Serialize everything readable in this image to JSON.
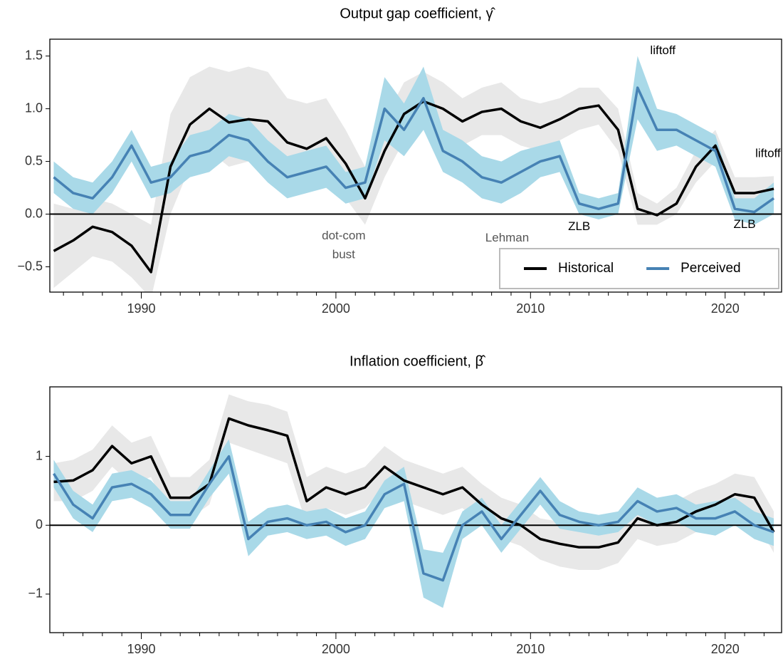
{
  "chart_data": [
    {
      "type": "line",
      "title": "Output gap coefficient, γ̂",
      "x": [
        1985.5,
        1986.5,
        1987.5,
        1988.5,
        1989.5,
        1990.5,
        1991.5,
        1992.5,
        1993.5,
        1994.5,
        1995.5,
        1996.5,
        1997.5,
        1998.5,
        1999.5,
        2000.5,
        2001.5,
        2002.5,
        2003.5,
        2004.5,
        2005.5,
        2006.5,
        2007.5,
        2008.5,
        2009.5,
        2010.5,
        2011.5,
        2012.5,
        2013.5,
        2014.5,
        2015.5,
        2016.5,
        2017.5,
        2018.5,
        2019.5,
        2020.5,
        2021.5,
        2022.5
      ],
      "xlim": [
        1985.3,
        2022.9
      ],
      "xticks": [
        1990,
        2000,
        2010,
        2020
      ],
      "xminorticks": [
        1986,
        1987,
        1988,
        1989,
        1991,
        1992,
        1993,
        1994,
        1995,
        1996,
        1997,
        1998,
        1999,
        2001,
        2002,
        2003,
        2004,
        2005,
        2006,
        2007,
        2008,
        2009,
        2011,
        2012,
        2013,
        2014,
        2015,
        2016,
        2017,
        2018,
        2019,
        2021,
        2022
      ],
      "ylim": [
        -0.74,
        1.66
      ],
      "yticks": [
        {
          "value": -0.5,
          "label": "−0.5"
        },
        {
          "value": 0,
          "label": "0.0"
        },
        {
          "value": 0.5,
          "label": "0.5"
        },
        {
          "value": 1,
          "label": "1.0"
        },
        {
          "value": 1.5,
          "label": "1.5"
        }
      ],
      "hline": 0,
      "legend": "lower right",
      "series": [
        {
          "name": "Historical",
          "color": "#000000",
          "band_color": "#e8e8e8",
          "values": [
            -0.35,
            -0.25,
            -0.12,
            -0.17,
            -0.3,
            -0.55,
            0.45,
            0.85,
            1.0,
            0.87,
            0.9,
            0.88,
            0.68,
            0.62,
            0.72,
            0.48,
            0.15,
            0.6,
            0.95,
            1.07,
            1.0,
            0.88,
            0.97,
            1.0,
            0.88,
            0.82,
            0.9,
            1.0,
            1.03,
            0.8,
            0.05,
            -0.01,
            0.1,
            0.45,
            0.65,
            0.2,
            0.2,
            0.24
          ],
          "band_lower": [
            -0.7,
            -0.55,
            -0.4,
            -0.45,
            -0.6,
            -0.8,
            0.0,
            0.45,
            0.6,
            0.45,
            0.5,
            0.45,
            0.3,
            0.25,
            0.4,
            0.15,
            -0.1,
            0.35,
            0.7,
            0.8,
            0.75,
            0.65,
            0.75,
            0.75,
            0.65,
            0.6,
            0.7,
            0.8,
            0.85,
            0.6,
            -0.1,
            -0.1,
            0.0,
            0.3,
            0.5,
            0.05,
            0.1,
            0.12
          ],
          "band_upper": [
            0.1,
            0.05,
            0.15,
            0.1,
            0.0,
            -0.1,
            0.95,
            1.3,
            1.4,
            1.35,
            1.4,
            1.35,
            1.1,
            1.05,
            1.1,
            0.8,
            0.45,
            0.9,
            1.25,
            1.35,
            1.25,
            1.1,
            1.2,
            1.25,
            1.1,
            1.05,
            1.1,
            1.2,
            1.2,
            1.0,
            0.2,
            0.1,
            0.25,
            0.6,
            0.8,
            0.35,
            0.35,
            0.36
          ]
        },
        {
          "name": "Perceived",
          "color": "#4682b4",
          "band_color": "#a9d9e8",
          "values": [
            0.35,
            0.2,
            0.15,
            0.35,
            0.65,
            0.3,
            0.35,
            0.55,
            0.6,
            0.75,
            0.7,
            0.5,
            0.35,
            0.4,
            0.45,
            0.25,
            0.3,
            1.0,
            0.8,
            1.1,
            0.6,
            0.5,
            0.35,
            0.3,
            0.4,
            0.5,
            0.55,
            0.1,
            0.05,
            0.1,
            1.2,
            0.8,
            0.8,
            0.7,
            0.6,
            0.05,
            0.02,
            0.15
          ],
          "band_lower": [
            0.2,
            0.05,
            0.0,
            0.2,
            0.5,
            0.15,
            0.2,
            0.35,
            0.4,
            0.55,
            0.5,
            0.3,
            0.15,
            0.2,
            0.25,
            0.1,
            0.15,
            0.7,
            0.55,
            0.8,
            0.4,
            0.3,
            0.15,
            0.1,
            0.2,
            0.35,
            0.4,
            0.0,
            -0.05,
            0.0,
            0.9,
            0.6,
            0.65,
            0.55,
            0.45,
            -0.05,
            -0.1,
            0.0
          ],
          "band_upper": [
            0.5,
            0.35,
            0.3,
            0.5,
            0.8,
            0.45,
            0.5,
            0.75,
            0.8,
            0.95,
            0.9,
            0.7,
            0.55,
            0.6,
            0.65,
            0.4,
            0.45,
            1.3,
            1.05,
            1.4,
            0.8,
            0.7,
            0.55,
            0.5,
            0.6,
            0.65,
            0.7,
            0.2,
            0.15,
            0.2,
            1.5,
            1.0,
            0.95,
            0.85,
            0.75,
            0.15,
            0.15,
            0.3
          ]
        }
      ],
      "annotations": [
        {
          "text": "dot-com",
          "x": 2000.4,
          "y": -0.21,
          "color": "#555555"
        },
        {
          "text": "bust",
          "x": 2000.4,
          "y": -0.39,
          "color": "#555555"
        },
        {
          "text": "Lehman",
          "x": 2008.8,
          "y": -0.23,
          "color": "#555555"
        },
        {
          "text": "ZLB",
          "x": 2012.5,
          "y": -0.12,
          "color": "#000000"
        },
        {
          "text": "liftoff",
          "x": 2016.8,
          "y": 1.55,
          "color": "#000000"
        },
        {
          "text": "ZLB",
          "x": 2021.0,
          "y": -0.1,
          "color": "#000000"
        },
        {
          "text": "liftoff",
          "x": 2022.2,
          "y": 0.57,
          "color": "#000000"
        }
      ]
    },
    {
      "type": "line",
      "title": "Inflation coefficient, β̂",
      "x": [
        1985.5,
        1986.5,
        1987.5,
        1988.5,
        1989.5,
        1990.5,
        1991.5,
        1992.5,
        1993.5,
        1994.5,
        1995.5,
        1996.5,
        1997.5,
        1998.5,
        1999.5,
        2000.5,
        2001.5,
        2002.5,
        2003.5,
        2004.5,
        2005.5,
        2006.5,
        2007.5,
        2008.5,
        2009.5,
        2010.5,
        2011.5,
        2012.5,
        2013.5,
        2014.5,
        2015.5,
        2016.5,
        2017.5,
        2018.5,
        2019.5,
        2020.5,
        2021.5,
        2022.5
      ],
      "xlim": [
        1985.3,
        2022.9
      ],
      "xticks": [
        1990,
        2000,
        2010,
        2020
      ],
      "xminorticks": [
        1986,
        1987,
        1988,
        1989,
        1991,
        1992,
        1993,
        1994,
        1995,
        1996,
        1997,
        1998,
        1999,
        2001,
        2002,
        2003,
        2004,
        2005,
        2006,
        2007,
        2008,
        2009,
        2011,
        2012,
        2013,
        2014,
        2015,
        2016,
        2017,
        2018,
        2019,
        2021,
        2022
      ],
      "ylim": [
        -1.56,
        2.01
      ],
      "yticks": [
        {
          "value": -1,
          "label": "−1"
        },
        0,
        1
      ],
      "hline": 0,
      "series": [
        {
          "name": "Historical",
          "color": "#000000",
          "band_color": "#e8e8e8",
          "values": [
            0.63,
            0.65,
            0.8,
            1.15,
            0.9,
            1.0,
            0.4,
            0.4,
            0.6,
            1.55,
            1.45,
            1.38,
            1.3,
            0.35,
            0.55,
            0.45,
            0.55,
            0.85,
            0.65,
            0.55,
            0.45,
            0.55,
            0.3,
            0.1,
            0.0,
            -0.2,
            -0.27,
            -0.32,
            -0.32,
            -0.25,
            0.1,
            0.0,
            0.05,
            0.2,
            0.3,
            0.45,
            0.4,
            -0.1
          ],
          "band_lower": [
            0.35,
            0.35,
            0.5,
            0.85,
            0.6,
            0.7,
            0.1,
            0.1,
            0.3,
            1.2,
            1.1,
            1.0,
            0.9,
            0.0,
            0.25,
            0.15,
            0.25,
            0.55,
            0.35,
            0.25,
            0.15,
            0.25,
            0.0,
            -0.2,
            -0.3,
            -0.5,
            -0.6,
            -0.65,
            -0.65,
            -0.55,
            -0.2,
            -0.3,
            -0.25,
            -0.1,
            0.0,
            0.15,
            0.1,
            -0.4
          ],
          "band_upper": [
            0.9,
            0.95,
            1.1,
            1.45,
            1.2,
            1.3,
            0.7,
            0.7,
            0.95,
            1.9,
            1.8,
            1.75,
            1.65,
            0.7,
            0.85,
            0.75,
            0.85,
            1.15,
            0.95,
            0.85,
            0.75,
            0.85,
            0.6,
            0.4,
            0.3,
            0.1,
            0.05,
            0.0,
            0.0,
            0.05,
            0.4,
            0.3,
            0.35,
            0.5,
            0.6,
            0.75,
            0.7,
            0.2
          ]
        },
        {
          "name": "Perceived",
          "color": "#4682b4",
          "band_color": "#a9d9e8",
          "values": [
            0.75,
            0.3,
            0.1,
            0.55,
            0.6,
            0.45,
            0.15,
            0.15,
            0.6,
            1.0,
            -0.2,
            0.05,
            0.1,
            0.0,
            0.05,
            -0.1,
            0.0,
            0.45,
            0.6,
            -0.7,
            -0.8,
            0.0,
            0.2,
            -0.2,
            0.15,
            0.5,
            0.15,
            0.05,
            0.0,
            0.05,
            0.35,
            0.2,
            0.25,
            0.1,
            0.1,
            0.2,
            0.0,
            -0.1
          ],
          "band_lower": [
            0.55,
            0.1,
            -0.1,
            0.35,
            0.4,
            0.25,
            -0.05,
            -0.05,
            0.4,
            0.75,
            -0.45,
            -0.15,
            -0.1,
            -0.2,
            -0.15,
            -0.3,
            -0.2,
            0.25,
            0.35,
            -1.05,
            -1.2,
            -0.2,
            0.0,
            -0.4,
            -0.05,
            0.3,
            -0.05,
            -0.1,
            -0.15,
            -0.1,
            0.15,
            0.0,
            0.05,
            -0.1,
            -0.15,
            0.0,
            -0.2,
            -0.3
          ],
          "band_upper": [
            0.95,
            0.5,
            0.3,
            0.75,
            0.8,
            0.65,
            0.35,
            0.35,
            0.8,
            1.25,
            0.05,
            0.25,
            0.3,
            0.2,
            0.25,
            0.1,
            0.2,
            0.65,
            0.85,
            -0.35,
            -0.4,
            0.2,
            0.4,
            0.0,
            0.35,
            0.7,
            0.35,
            0.2,
            0.15,
            0.2,
            0.55,
            0.4,
            0.45,
            0.3,
            0.35,
            0.4,
            0.2,
            0.1
          ]
        }
      ]
    }
  ]
}
